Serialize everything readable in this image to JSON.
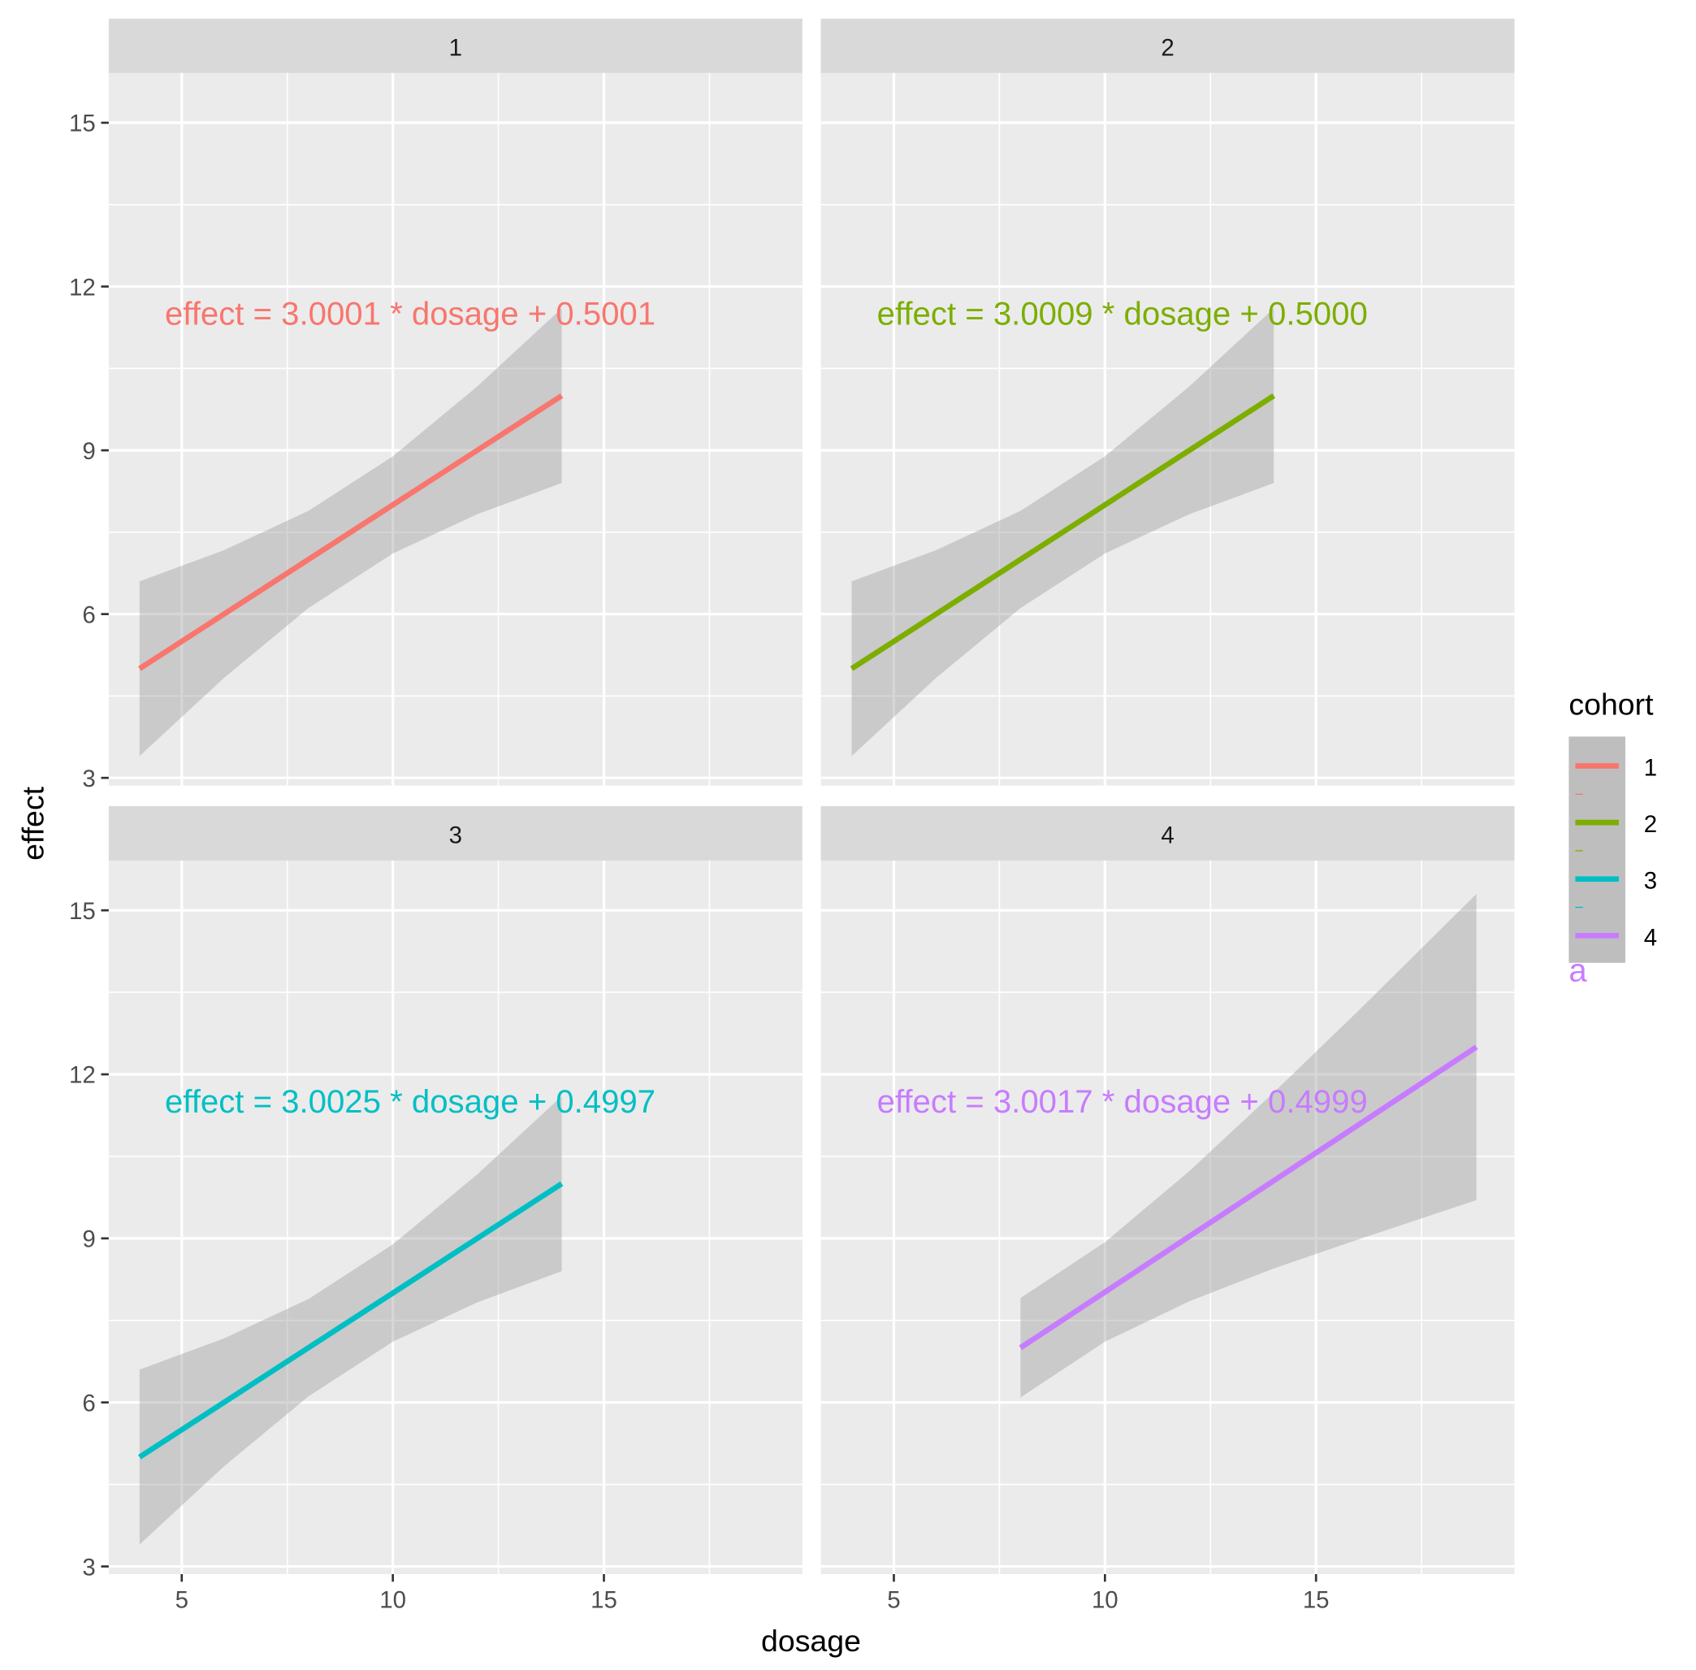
{
  "chart_data": {
    "type": "line",
    "xlabel": "dosage",
    "ylabel": "effect",
    "xlim": [
      3.27,
      19.7
    ],
    "ylim": [
      2.86,
      15.91
    ],
    "x_ticks": [
      5,
      10,
      15
    ],
    "x_tick_labels": [
      "5",
      "10",
      "15"
    ],
    "y_ticks": [
      3,
      6,
      9,
      12,
      15
    ],
    "y_tick_labels": [
      "3",
      "6",
      "9",
      "12",
      "15"
    ],
    "grid": true,
    "legend": {
      "title": "cohort",
      "placement": "right",
      "entries": [
        "1",
        "2",
        "3",
        "4"
      ],
      "stray_label": "a"
    },
    "panels": [
      {
        "strip": "1",
        "color": "#F8766D",
        "fit": {
          "x": [
            4,
            14
          ],
          "y": [
            5,
            10
          ]
        },
        "ribbon": {
          "x": [
            4,
            6,
            8,
            10,
            12,
            14
          ],
          "lower": [
            3.4,
            4.83,
            6.11,
            7.11,
            7.83,
            8.4
          ],
          "upper": [
            6.6,
            7.17,
            7.89,
            8.89,
            10.17,
            11.6
          ]
        },
        "label": "effect =  3.0001  * dosage +  0.5001",
        "label_pos": [
          4.6,
          11.5
        ]
      },
      {
        "strip": "2",
        "color": "#7CAE00",
        "fit": {
          "x": [
            4,
            14
          ],
          "y": [
            5,
            10
          ]
        },
        "ribbon": {
          "x": [
            4,
            6,
            8,
            10,
            12,
            14
          ],
          "lower": [
            3.4,
            4.83,
            6.11,
            7.11,
            7.83,
            8.4
          ],
          "upper": [
            6.6,
            7.17,
            7.89,
            8.89,
            10.17,
            11.6
          ]
        },
        "label": "effect =  3.0009  * dosage +  0.5000",
        "label_pos": [
          4.6,
          11.5
        ]
      },
      {
        "strip": "3",
        "color": "#00BFC4",
        "fit": {
          "x": [
            4,
            14
          ],
          "y": [
            5,
            10
          ]
        },
        "ribbon": {
          "x": [
            4,
            6,
            8,
            10,
            12,
            14
          ],
          "lower": [
            3.4,
            4.83,
            6.11,
            7.11,
            7.83,
            8.4
          ],
          "upper": [
            6.6,
            7.17,
            7.89,
            8.89,
            10.17,
            11.6
          ]
        },
        "label": "effect =  3.0025  * dosage +  0.4997",
        "label_pos": [
          4.6,
          11.5
        ]
      },
      {
        "strip": "4",
        "color": "#C77CFF",
        "fit": {
          "x": [
            8,
            18.8
          ],
          "y": [
            7,
            12.5
          ]
        },
        "ribbon": {
          "x": [
            8,
            10,
            12,
            14,
            16,
            18.8
          ],
          "lower": [
            6.09,
            7.11,
            7.85,
            8.45,
            8.98,
            9.7
          ],
          "upper": [
            7.91,
            8.93,
            10.23,
            11.67,
            13.16,
            15.3
          ]
        },
        "label": "effect =  3.0017  * dosage +  0.4999",
        "label_pos": [
          4.6,
          11.5
        ]
      }
    ]
  }
}
